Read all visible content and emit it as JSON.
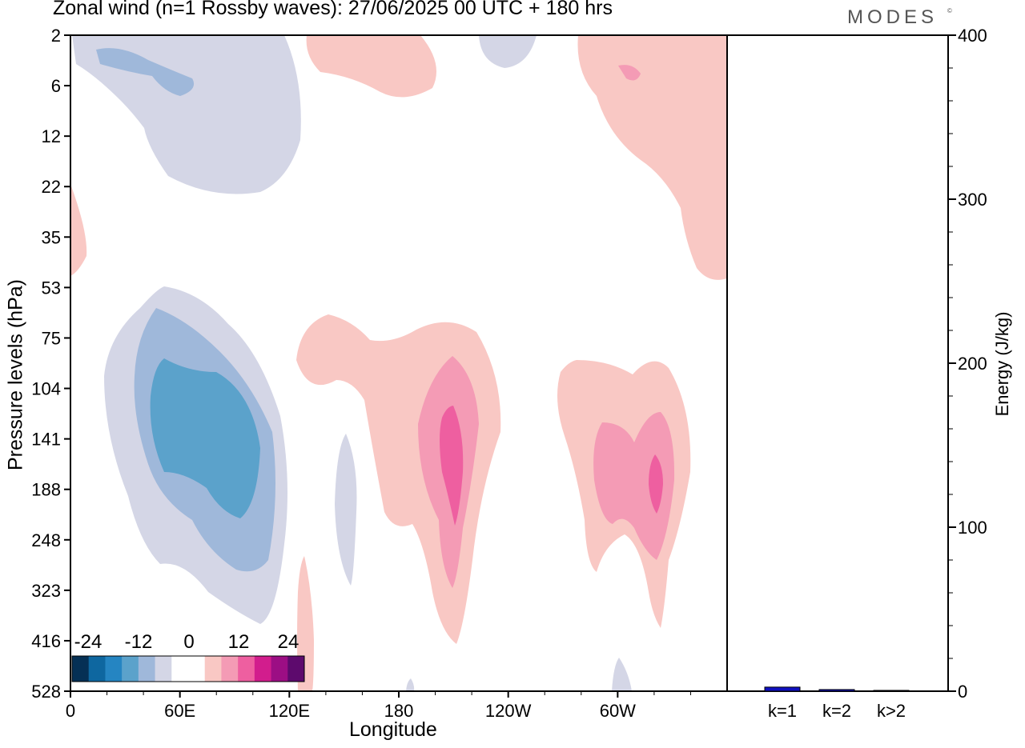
{
  "header": {
    "title": "Zonal wind (n=1 Rossby waves):  27/06/2025  00 UTC  + 180 hrs",
    "brand": "MODES",
    "brand_mark": "©"
  },
  "colors": {
    "neg_3": "#5ba2cb",
    "neg_2": "#9fb8da",
    "neg_1": "#d4d6e6",
    "pos_1": "#f9c8c4",
    "pos_2": "#f49bb5",
    "pos_3": "#ee5fa0",
    "bar": "#1010c0"
  },
  "chart_data": [
    {
      "type": "heatmap",
      "title": "Zonal wind (n=1 Rossby waves):  27/06/2025  00 UTC  + 180 hrs",
      "xlabel": "Longitude",
      "ylabel": "Pressure levels (hPa)",
      "x_ticks": [
        "0",
        "60E",
        "120E",
        "180",
        "120W",
        "60W"
      ],
      "y_ticks": [
        "2",
        "6",
        "12",
        "22",
        "35",
        "53",
        "75",
        "104",
        "141",
        "188",
        "248",
        "323",
        "416",
        "528"
      ],
      "colorbar": {
        "tick_labels": [
          "-24",
          "-12",
          "0",
          "12",
          "24"
        ],
        "colors": [
          "#053055",
          "#0e67a0",
          "#2585c2",
          "#5ba2cb",
          "#9fb8da",
          "#d4d6e6",
          "#ffffff",
          "#ffffff",
          "#f9c8c4",
          "#f49bb5",
          "#ee5fa0",
          "#d21d8d",
          "#9c0e84",
          "#5d0a6d"
        ]
      },
      "regions": [
        {
          "sign": "negative",
          "level": 1,
          "lon_range": [
            0,
            125
          ],
          "pressure_range": [
            2,
            22
          ]
        },
        {
          "sign": "negative",
          "level": 2,
          "lon_range": [
            14,
            60
          ],
          "pressure_range": [
            3,
            6
          ]
        },
        {
          "sign": "positive",
          "level": 1,
          "lon_range": [
            130,
            200
          ],
          "pressure_range": [
            2,
            6
          ]
        },
        {
          "sign": "positive",
          "level": 1,
          "lon_range": [
            278,
            360
          ],
          "pressure_range": [
            2,
            53
          ]
        },
        {
          "sign": "positive",
          "level": 2,
          "lon_range": [
            300,
            310
          ],
          "pressure_range": [
            4,
            5
          ]
        },
        {
          "sign": "negative",
          "level": 1,
          "lon_range": [
            12,
            118
          ],
          "pressure_range": [
            53,
            400
          ]
        },
        {
          "sign": "negative",
          "level": 2,
          "lon_range": [
            28,
            112
          ],
          "pressure_range": [
            75,
            323
          ]
        },
        {
          "sign": "negative",
          "level": 3,
          "lon_range": [
            35,
            106
          ],
          "pressure_range": [
            104,
            220
          ]
        },
        {
          "sign": "positive",
          "level": 1,
          "lon_range": [
            125,
            237
          ],
          "pressure_range": [
            70,
            430
          ]
        },
        {
          "sign": "positive",
          "level": 2,
          "lon_range": [
            190,
            225
          ],
          "pressure_range": [
            90,
            330
          ]
        },
        {
          "sign": "positive",
          "level": 3,
          "lon_range": [
            201,
            214
          ],
          "pressure_range": [
            125,
            230
          ]
        },
        {
          "sign": "positive",
          "level": 1,
          "lon_range": [
            265,
            340
          ],
          "pressure_range": [
            104,
            410
          ]
        },
        {
          "sign": "positive",
          "level": 2,
          "lon_range": [
            285,
            330
          ],
          "pressure_range": [
            125,
            260
          ]
        },
        {
          "sign": "positive",
          "level": 3,
          "lon_range": [
            315,
            323
          ],
          "pressure_range": [
            160,
            220
          ]
        }
      ]
    },
    {
      "type": "bar",
      "ylabel": "Energy (J/kg)",
      "categories": [
        "k=1",
        "k=2",
        "k>2"
      ],
      "values": [
        2.5,
        1.0,
        0.5
      ],
      "ylim": [
        0,
        400
      ],
      "y_ticks": [
        "0",
        "100",
        "200",
        "300",
        "400"
      ]
    }
  ]
}
